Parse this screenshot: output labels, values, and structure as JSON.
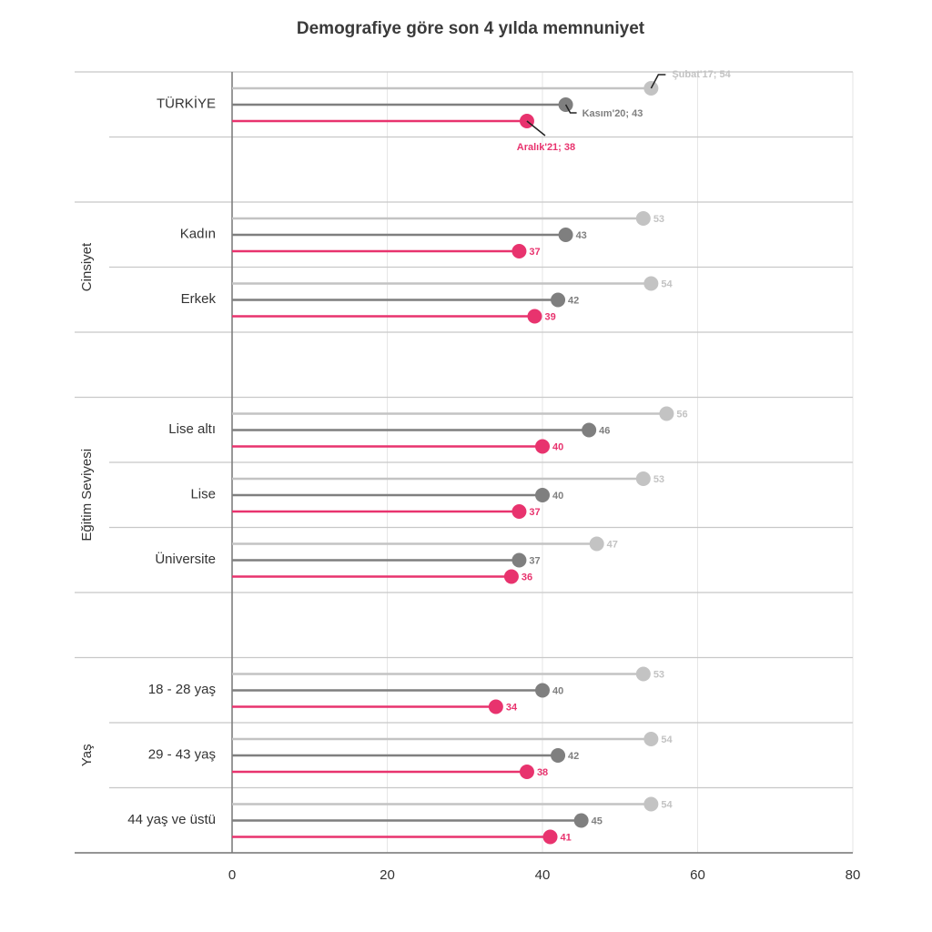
{
  "chart_data": {
    "type": "lollipop",
    "orientation": "horizontal",
    "title": "Demografiye göre son 4 yılda  memnuniyet",
    "categories": [
      "TÜRKİYE",
      null,
      "Kadın",
      "Erkek",
      null,
      "Lise altı",
      "Lise",
      "Üniversite",
      null,
      "18 - 28 yaş",
      "29 - 43 yaş",
      "44 yaş ve üstü"
    ],
    "category_groups": [
      null,
      null,
      "Cinsiyet",
      "Cinsiyet",
      null,
      "Eğitim Seviyesi",
      "Eğitim Seviyesi",
      "Eğitim Seviyesi",
      null,
      "Yaş",
      "Yaş",
      "Yaş"
    ],
    "series": [
      {
        "color": "#c3c3c3",
        "values": [
          54,
          null,
          53,
          54,
          null,
          56,
          53,
          47,
          null,
          53,
          54,
          54
        ],
        "value_labels": [
          "Şubat'17; 54",
          null,
          "53",
          "54",
          null,
          "56",
          "53",
          "47",
          null,
          "53",
          "54",
          "54"
        ]
      },
      {
        "color": "#7f7f7f",
        "values": [
          43,
          null,
          43,
          42,
          null,
          46,
          40,
          37,
          null,
          40,
          42,
          45
        ],
        "value_labels": [
          "Kasım'20; 43",
          null,
          "43",
          "42",
          null,
          "46",
          "40",
          "37",
          null,
          "40",
          "42",
          "45"
        ]
      },
      {
        "color": "#e8336e",
        "values": [
          38,
          null,
          37,
          39,
          null,
          40,
          37,
          36,
          null,
          34,
          38,
          41
        ],
        "value_labels": [
          "Aralık'21; 38",
          null,
          "37",
          "39",
          null,
          "40",
          "37",
          "36",
          null,
          "34",
          "38",
          "41"
        ]
      }
    ],
    "xlim": [
      0,
      80
    ],
    "xticks": [
      0,
      20,
      40,
      60,
      80
    ],
    "grid": true
  }
}
